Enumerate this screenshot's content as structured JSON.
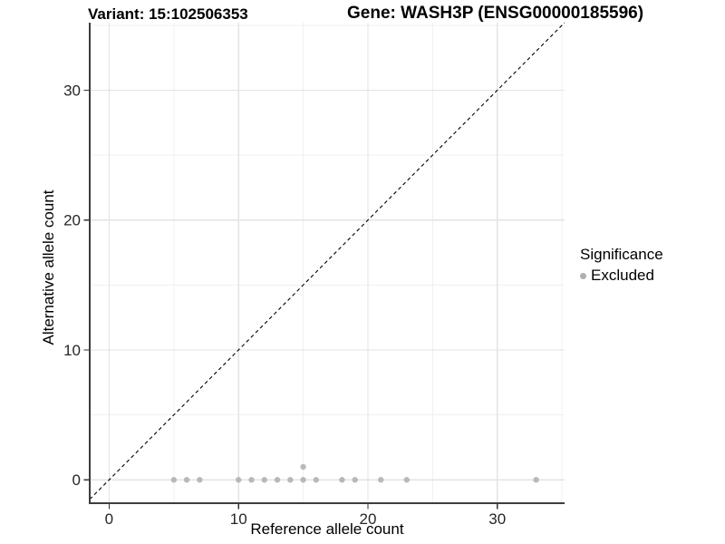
{
  "header": {
    "variant_title": "Variant: 15:102506353",
    "gene_title": "Gene: WASH3P (ENSG00000185596)"
  },
  "chart_data": {
    "type": "scatter",
    "xlabel": "Reference allele count",
    "ylabel": "Alternative allele count",
    "xlim": [
      -1.5,
      35.2
    ],
    "ylim": [
      -1.8,
      35.2
    ],
    "xticks": [
      0,
      10,
      20,
      30
    ],
    "yticks": [
      0,
      10,
      20,
      30
    ],
    "minor_xticks": [
      5,
      15,
      25,
      35
    ],
    "minor_yticks": [
      5,
      15,
      25,
      35
    ],
    "grid": "major+minor",
    "identity_line": {
      "equation": "y = x",
      "style": "dashed",
      "color": "#000000"
    },
    "series": [
      {
        "name": "Excluded",
        "color": "#b0b0b0",
        "points": [
          [
            5,
            0
          ],
          [
            6,
            0
          ],
          [
            7,
            0
          ],
          [
            10,
            0
          ],
          [
            11,
            0
          ],
          [
            12,
            0
          ],
          [
            13,
            0
          ],
          [
            14,
            0
          ],
          [
            15,
            0
          ],
          [
            15,
            1
          ],
          [
            16,
            0
          ],
          [
            18,
            0
          ],
          [
            19,
            0
          ],
          [
            21,
            0
          ],
          [
            23,
            0
          ],
          [
            33,
            0
          ]
        ]
      }
    ],
    "legend": {
      "title": "Significance",
      "position": "right",
      "entries": [
        {
          "label": "Excluded",
          "color": "#b0b0b0",
          "marker": "circle-icon"
        }
      ]
    },
    "colors": {
      "background": "#ffffff",
      "grid_major": "#e3e3e3",
      "grid_minor": "#f0f0f0",
      "axis_line": "#3d3d3d",
      "tick": "#333333",
      "tick_label": "#262626",
      "axis_title": "#000000"
    }
  }
}
